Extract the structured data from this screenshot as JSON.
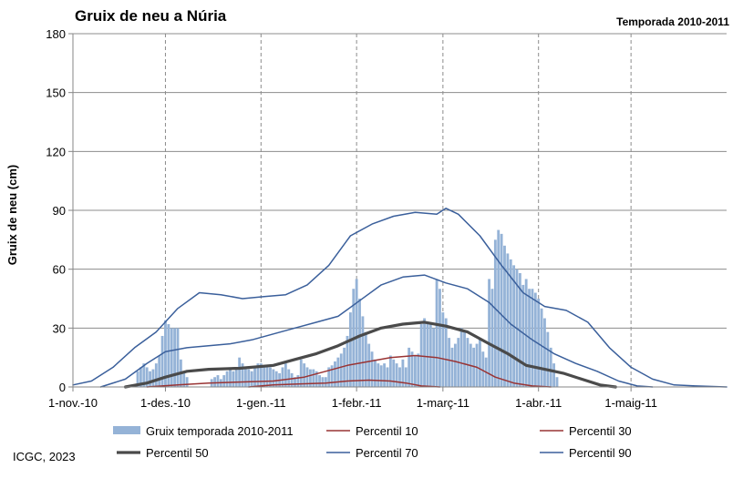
{
  "chart_data": {
    "type": "bar",
    "title": "Gruix de neu a Núria",
    "subtitle": "Temporada 2010-2011",
    "ylabel": "Gruix de neu (cm)",
    "xlabel": "",
    "ylim": [
      0,
      180
    ],
    "yticks": [
      0,
      30,
      60,
      90,
      120,
      150,
      180
    ],
    "xlim": [
      "2010-11-01",
      "2011-06-01"
    ],
    "xticks": [
      {
        "date": "2010-11-01",
        "label": "1-nov.-10"
      },
      {
        "date": "2010-12-01",
        "label": "1-des.-10"
      },
      {
        "date": "2011-01-01",
        "label": "1-gen.-11"
      },
      {
        "date": "2011-02-01",
        "label": "1-febr.-11"
      },
      {
        "date": "2011-03-01",
        "label": "1-març-11"
      },
      {
        "date": "2011-04-01",
        "label": "1-abr.-11"
      },
      {
        "date": "2011-05-01",
        "label": "1-maig-11"
      }
    ],
    "grid": {
      "vertical_dashed": true,
      "horizontal": true
    },
    "legend_position": "bottom",
    "series": [
      {
        "name": "Gruix temporada 2010-2011",
        "kind": "bar",
        "color": "#95b3d7",
        "points": [
          [
            "2010-11-22",
            8
          ],
          [
            "2010-11-23",
            10
          ],
          [
            "2010-11-24",
            12
          ],
          [
            "2010-11-25",
            10
          ],
          [
            "2010-11-26",
            8
          ],
          [
            "2010-11-27",
            9
          ],
          [
            "2010-11-28",
            12
          ],
          [
            "2010-11-29",
            16
          ],
          [
            "2010-11-30",
            26
          ],
          [
            "2010-12-01",
            34
          ],
          [
            "2010-12-02",
            32
          ],
          [
            "2010-12-03",
            30
          ],
          [
            "2010-12-04",
            30
          ],
          [
            "2010-12-05",
            30
          ],
          [
            "2010-12-06",
            14
          ],
          [
            "2010-12-07",
            8
          ],
          [
            "2010-12-08",
            5
          ],
          [
            "2010-12-16",
            4
          ],
          [
            "2010-12-17",
            5
          ],
          [
            "2010-12-18",
            6
          ],
          [
            "2010-12-19",
            4
          ],
          [
            "2010-12-20",
            6
          ],
          [
            "2010-12-21",
            8
          ],
          [
            "2010-12-22",
            10
          ],
          [
            "2010-12-23",
            8
          ],
          [
            "2010-12-24",
            9
          ],
          [
            "2010-12-25",
            15
          ],
          [
            "2010-12-26",
            12
          ],
          [
            "2010-12-27",
            10
          ],
          [
            "2010-12-28",
            9
          ],
          [
            "2010-12-29",
            8
          ],
          [
            "2010-12-30",
            10
          ],
          [
            "2010-12-31",
            12
          ],
          [
            "2011-01-01",
            12
          ],
          [
            "2011-01-02",
            10
          ],
          [
            "2011-01-03",
            11
          ],
          [
            "2011-01-04",
            10
          ],
          [
            "2011-01-05",
            9
          ],
          [
            "2011-01-06",
            8
          ],
          [
            "2011-01-07",
            7
          ],
          [
            "2011-01-08",
            10
          ],
          [
            "2011-01-09",
            12
          ],
          [
            "2011-01-10",
            9
          ],
          [
            "2011-01-11",
            7
          ],
          [
            "2011-01-12",
            5
          ],
          [
            "2011-01-13",
            6
          ],
          [
            "2011-01-14",
            14
          ],
          [
            "2011-01-15",
            12
          ],
          [
            "2011-01-16",
            10
          ],
          [
            "2011-01-17",
            9
          ],
          [
            "2011-01-18",
            9
          ],
          [
            "2011-01-19",
            8
          ],
          [
            "2011-01-20",
            6
          ],
          [
            "2011-01-21",
            5
          ],
          [
            "2011-01-22",
            5
          ],
          [
            "2011-01-23",
            10
          ],
          [
            "2011-01-24",
            11
          ],
          [
            "2011-01-25",
            13
          ],
          [
            "2011-01-26",
            15
          ],
          [
            "2011-01-27",
            17
          ],
          [
            "2011-01-28",
            20
          ],
          [
            "2011-01-29",
            26
          ],
          [
            "2011-01-30",
            38
          ],
          [
            "2011-01-31",
            50
          ],
          [
            "2011-02-01",
            55
          ],
          [
            "2011-02-02",
            45
          ],
          [
            "2011-02-03",
            36
          ],
          [
            "2011-02-04",
            28
          ],
          [
            "2011-02-05",
            22
          ],
          [
            "2011-02-06",
            18
          ],
          [
            "2011-02-07",
            14
          ],
          [
            "2011-02-08",
            12
          ],
          [
            "2011-02-09",
            11
          ],
          [
            "2011-02-10",
            12
          ],
          [
            "2011-02-11",
            10
          ],
          [
            "2011-02-12",
            16
          ],
          [
            "2011-02-13",
            14
          ],
          [
            "2011-02-14",
            12
          ],
          [
            "2011-02-15",
            10
          ],
          [
            "2011-02-16",
            14
          ],
          [
            "2011-02-17",
            10
          ],
          [
            "2011-02-18",
            20
          ],
          [
            "2011-02-19",
            18
          ],
          [
            "2011-02-20",
            16
          ],
          [
            "2011-02-21",
            17
          ],
          [
            "2011-02-22",
            32
          ],
          [
            "2011-02-23",
            35
          ],
          [
            "2011-02-24",
            33
          ],
          [
            "2011-02-25",
            32
          ],
          [
            "2011-02-26",
            30
          ],
          [
            "2011-02-27",
            55
          ],
          [
            "2011-02-28",
            50
          ],
          [
            "2011-03-01",
            38
          ],
          [
            "2011-03-02",
            35
          ],
          [
            "2011-03-03",
            25
          ],
          [
            "2011-03-04",
            20
          ],
          [
            "2011-03-05",
            22
          ],
          [
            "2011-03-06",
            25
          ],
          [
            "2011-03-07",
            30
          ],
          [
            "2011-03-08",
            28
          ],
          [
            "2011-03-09",
            25
          ],
          [
            "2011-03-10",
            22
          ],
          [
            "2011-03-11",
            20
          ],
          [
            "2011-03-12",
            22
          ],
          [
            "2011-03-13",
            25
          ],
          [
            "2011-03-14",
            18
          ],
          [
            "2011-03-15",
            15
          ],
          [
            "2011-03-16",
            55
          ],
          [
            "2011-03-17",
            50
          ],
          [
            "2011-03-18",
            75
          ],
          [
            "2011-03-19",
            80
          ],
          [
            "2011-03-20",
            78
          ],
          [
            "2011-03-21",
            72
          ],
          [
            "2011-03-22",
            68
          ],
          [
            "2011-03-23",
            65
          ],
          [
            "2011-03-24",
            62
          ],
          [
            "2011-03-25",
            60
          ],
          [
            "2011-03-26",
            58
          ],
          [
            "2011-03-27",
            52
          ],
          [
            "2011-03-28",
            55
          ],
          [
            "2011-03-29",
            50
          ],
          [
            "2011-03-30",
            50
          ],
          [
            "2011-03-31",
            48
          ],
          [
            "2011-04-01",
            45
          ],
          [
            "2011-04-02",
            40
          ],
          [
            "2011-04-03",
            35
          ],
          [
            "2011-04-04",
            28
          ],
          [
            "2011-04-05",
            20
          ],
          [
            "2011-04-06",
            12
          ],
          [
            "2011-04-07",
            5
          ]
        ]
      },
      {
        "name": "Percentil 10",
        "kind": "line",
        "color": "#993333",
        "width": 1.5,
        "points": [
          [
            "2010-12-28",
            0
          ],
          [
            "2011-01-05",
            1
          ],
          [
            "2011-01-13",
            1.5
          ],
          [
            "2011-01-22",
            2
          ],
          [
            "2011-01-29",
            3
          ],
          [
            "2011-02-05",
            3.5
          ],
          [
            "2011-02-12",
            3
          ],
          [
            "2011-02-17",
            2
          ],
          [
            "2011-02-22",
            0.5
          ],
          [
            "2011-02-28",
            0
          ]
        ]
      },
      {
        "name": "Percentil 30",
        "kind": "line",
        "color": "#993333",
        "width": 1.5,
        "points": [
          [
            "2010-11-25",
            0
          ],
          [
            "2010-12-05",
            1
          ],
          [
            "2010-12-15",
            2
          ],
          [
            "2010-12-25",
            2.5
          ],
          [
            "2011-01-05",
            3
          ],
          [
            "2011-01-15",
            5
          ],
          [
            "2011-01-22",
            8
          ],
          [
            "2011-01-29",
            11
          ],
          [
            "2011-02-05",
            13
          ],
          [
            "2011-02-12",
            15
          ],
          [
            "2011-02-20",
            16
          ],
          [
            "2011-02-27",
            15
          ],
          [
            "2011-03-05",
            13
          ],
          [
            "2011-03-12",
            10
          ],
          [
            "2011-03-18",
            5
          ],
          [
            "2011-03-24",
            2
          ],
          [
            "2011-03-30",
            0.5
          ],
          [
            "2011-04-05",
            0
          ]
        ]
      },
      {
        "name": "Percentil 50",
        "kind": "line",
        "color": "#4a4a4a",
        "width": 3.2,
        "points": [
          [
            "2010-11-18",
            0
          ],
          [
            "2010-11-25",
            2
          ],
          [
            "2010-12-01",
            5
          ],
          [
            "2010-12-08",
            8
          ],
          [
            "2010-12-15",
            9
          ],
          [
            "2010-12-25",
            9.5
          ],
          [
            "2011-01-05",
            11
          ],
          [
            "2011-01-12",
            14
          ],
          [
            "2011-01-19",
            17
          ],
          [
            "2011-01-26",
            21
          ],
          [
            "2011-02-02",
            26
          ],
          [
            "2011-02-09",
            30
          ],
          [
            "2011-02-16",
            32
          ],
          [
            "2011-02-23",
            33
          ],
          [
            "2011-03-02",
            31
          ],
          [
            "2011-03-09",
            28
          ],
          [
            "2011-03-16",
            22
          ],
          [
            "2011-03-22",
            17
          ],
          [
            "2011-03-28",
            11
          ],
          [
            "2011-04-03",
            9
          ],
          [
            "2011-04-09",
            7
          ],
          [
            "2011-04-15",
            4
          ],
          [
            "2011-04-21",
            1
          ],
          [
            "2011-04-26",
            0
          ]
        ]
      },
      {
        "name": "Percentil 70",
        "kind": "line",
        "color": "#3a5f9b",
        "width": 1.5,
        "points": [
          [
            "2010-11-10",
            0
          ],
          [
            "2010-11-18",
            4
          ],
          [
            "2010-11-25",
            12
          ],
          [
            "2010-12-01",
            18
          ],
          [
            "2010-12-08",
            20
          ],
          [
            "2010-12-15",
            21
          ],
          [
            "2010-12-22",
            22
          ],
          [
            "2010-12-29",
            24
          ],
          [
            "2011-01-05",
            27
          ],
          [
            "2011-01-12",
            30
          ],
          [
            "2011-01-19",
            33
          ],
          [
            "2011-01-26",
            36
          ],
          [
            "2011-02-02",
            44
          ],
          [
            "2011-02-09",
            52
          ],
          [
            "2011-02-16",
            56
          ],
          [
            "2011-02-23",
            57
          ],
          [
            "2011-03-02",
            53
          ],
          [
            "2011-03-09",
            50
          ],
          [
            "2011-03-16",
            43
          ],
          [
            "2011-03-23",
            32
          ],
          [
            "2011-03-30",
            24
          ],
          [
            "2011-04-06",
            17
          ],
          [
            "2011-04-13",
            12
          ],
          [
            "2011-04-20",
            8
          ],
          [
            "2011-04-27",
            3
          ],
          [
            "2011-05-03",
            0.5
          ],
          [
            "2011-05-08",
            0
          ]
        ]
      },
      {
        "name": "Percentil 90",
        "kind": "line",
        "color": "#3a5f9b",
        "width": 1.5,
        "points": [
          [
            "2010-11-01",
            1
          ],
          [
            "2010-11-07",
            3
          ],
          [
            "2010-11-14",
            10
          ],
          [
            "2010-11-21",
            20
          ],
          [
            "2010-11-28",
            28
          ],
          [
            "2010-12-05",
            40
          ],
          [
            "2010-12-12",
            48
          ],
          [
            "2010-12-19",
            47
          ],
          [
            "2010-12-26",
            45
          ],
          [
            "2011-01-02",
            46
          ],
          [
            "2011-01-09",
            47
          ],
          [
            "2011-01-16",
            52
          ],
          [
            "2011-01-23",
            62
          ],
          [
            "2011-01-30",
            77
          ],
          [
            "2011-02-06",
            83
          ],
          [
            "2011-02-13",
            87
          ],
          [
            "2011-02-20",
            89
          ],
          [
            "2011-02-27",
            88
          ],
          [
            "2011-03-02",
            91
          ],
          [
            "2011-03-06",
            88
          ],
          [
            "2011-03-13",
            77
          ],
          [
            "2011-03-20",
            62
          ],
          [
            "2011-03-27",
            48
          ],
          [
            "2011-04-03",
            41
          ],
          [
            "2011-04-10",
            39
          ],
          [
            "2011-04-17",
            33
          ],
          [
            "2011-04-24",
            20
          ],
          [
            "2011-05-01",
            10
          ],
          [
            "2011-05-08",
            4
          ],
          [
            "2011-05-15",
            1
          ],
          [
            "2011-05-22",
            0.5
          ],
          [
            "2011-06-01",
            0
          ]
        ]
      }
    ],
    "legend": [
      {
        "name": "Gruix temporada 2010-2011",
        "kind": "bar",
        "color": "#95b3d7"
      },
      {
        "name": "Percentil 10",
        "kind": "line",
        "color": "#993333",
        "width": 1.5
      },
      {
        "name": "Percentil 30",
        "kind": "line",
        "color": "#993333",
        "width": 1.5
      },
      {
        "name": "Percentil 50",
        "kind": "line",
        "color": "#4a4a4a",
        "width": 3.2
      },
      {
        "name": "Percentil 70",
        "kind": "line",
        "color": "#3a5f9b",
        "width": 1.5
      },
      {
        "name": "Percentil 90",
        "kind": "line",
        "color": "#3a5f9b",
        "width": 1.5
      }
    ]
  },
  "footer": {
    "credit": "ICGC, 2023"
  }
}
